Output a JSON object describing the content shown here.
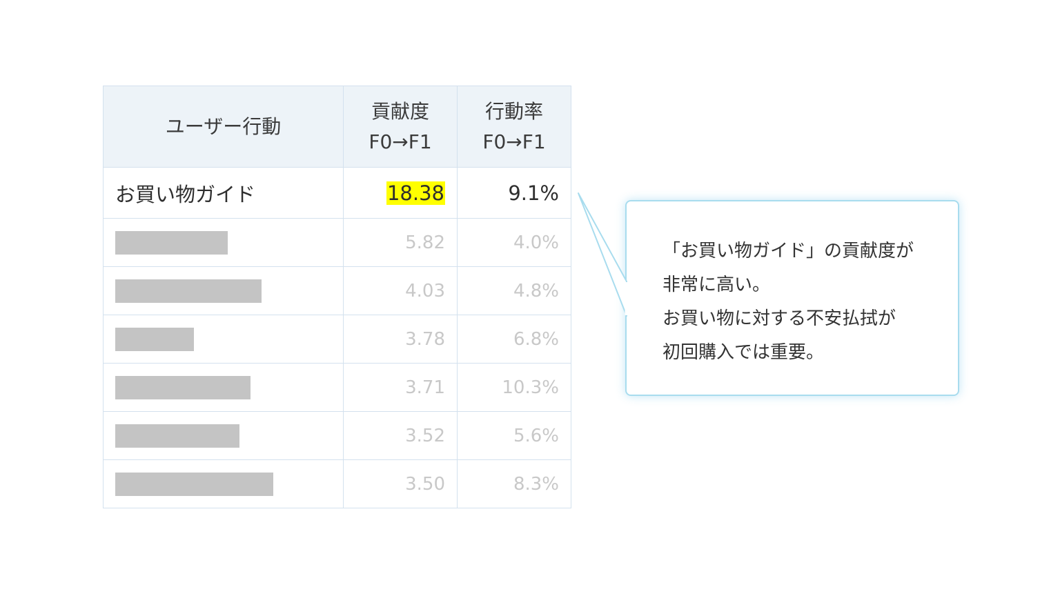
{
  "table": {
    "headers": {
      "behavior": "ユーザー行動",
      "contribution": [
        "貢献度",
        "F0→F1"
      ],
      "action_rate": [
        "行動率",
        "F0→F1"
      ]
    },
    "highlighted_row": {
      "label": "お買い物ガイド",
      "contribution": "18.38",
      "action_rate": "9.1%"
    },
    "masked_rows": [
      {
        "contribution": "5.82",
        "action_rate": "4.0%"
      },
      {
        "contribution": "4.03",
        "action_rate": "4.8%"
      },
      {
        "contribution": "3.78",
        "action_rate": "6.8%"
      },
      {
        "contribution": "3.71",
        "action_rate": "10.3%"
      },
      {
        "contribution": "3.52",
        "action_rate": "5.6%"
      },
      {
        "contribution": "3.50",
        "action_rate": "8.3%"
      }
    ]
  },
  "callout": {
    "lines": [
      "「お買い物ガイド」の貢献度が",
      "非常に高い。",
      "お買い物に対する不安払拭が",
      "初回購入では重要。"
    ]
  },
  "colors": {
    "header_background": "#edf3f8",
    "border": "#d3e1ee",
    "highlight": "#ffff00",
    "mask": "#c4c4c4",
    "muted_text": "#c8c8c8",
    "callout_border": "#a8dcee"
  }
}
